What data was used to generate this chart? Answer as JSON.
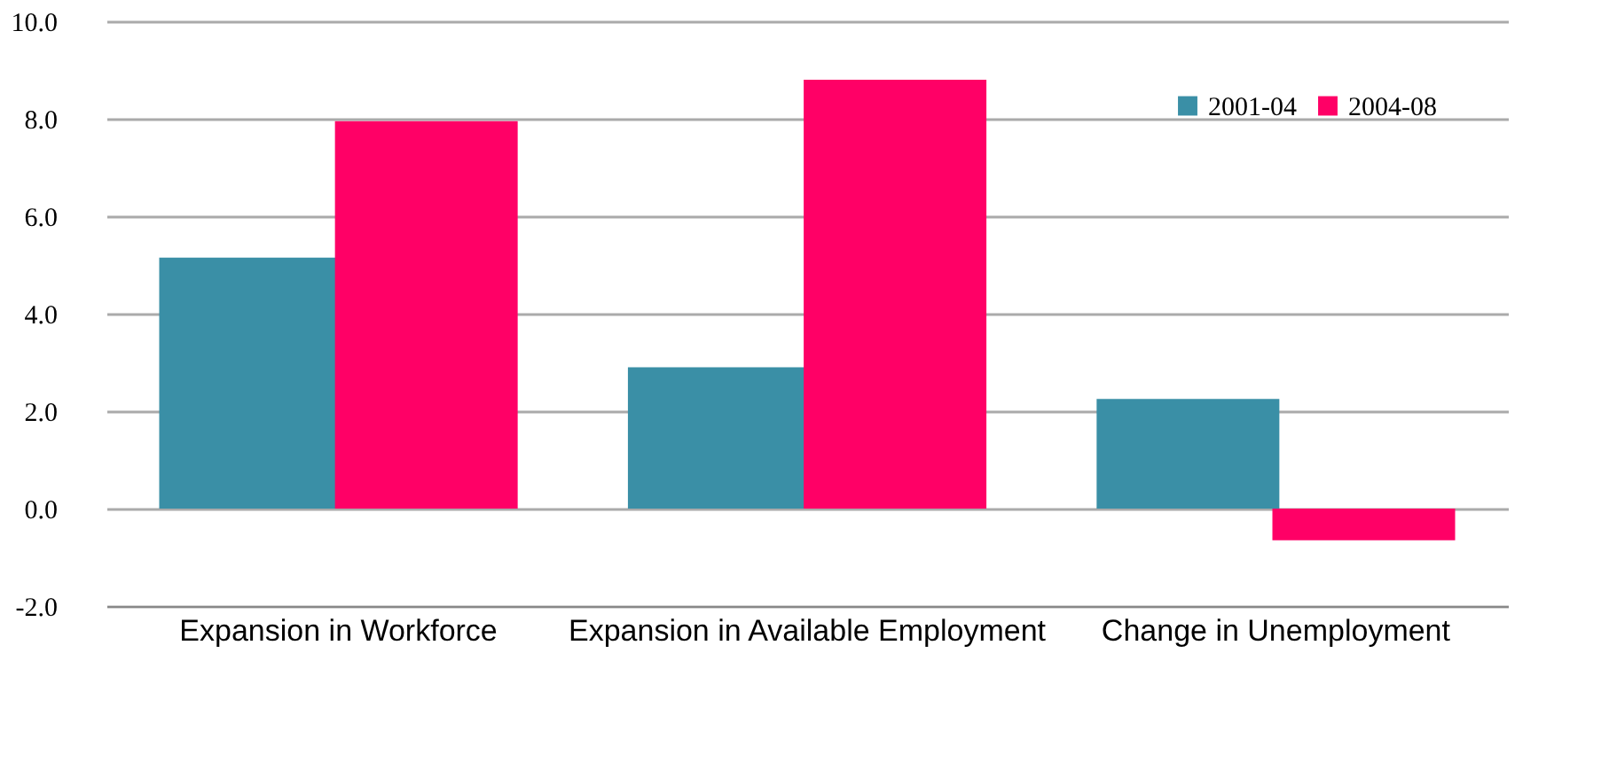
{
  "chart_data": {
    "type": "bar",
    "categories": [
      "Expansion in Workforce",
      "Expansion in Available Employment",
      "Change in Unemployment"
    ],
    "series": [
      {
        "name": "2001-04",
        "color": "#3a8fa6",
        "values": [
          5.15,
          2.9,
          2.25
        ]
      },
      {
        "name": "2004-08",
        "color": "#ff0066",
        "values": [
          7.95,
          8.8,
          -0.65
        ]
      }
    ],
    "ylim": [
      -2,
      10
    ],
    "yticks": [
      {
        "value": -2,
        "label": "-2.0"
      },
      {
        "value": 0,
        "label": "0.0"
      },
      {
        "value": 2,
        "label": "2.0"
      },
      {
        "value": 4,
        "label": "4.0"
      },
      {
        "value": 6,
        "label": "6.0"
      },
      {
        "value": 8,
        "label": "8.0"
      },
      {
        "value": 10,
        "label": "10.0"
      }
    ],
    "grid": "y",
    "legend": "top right"
  }
}
